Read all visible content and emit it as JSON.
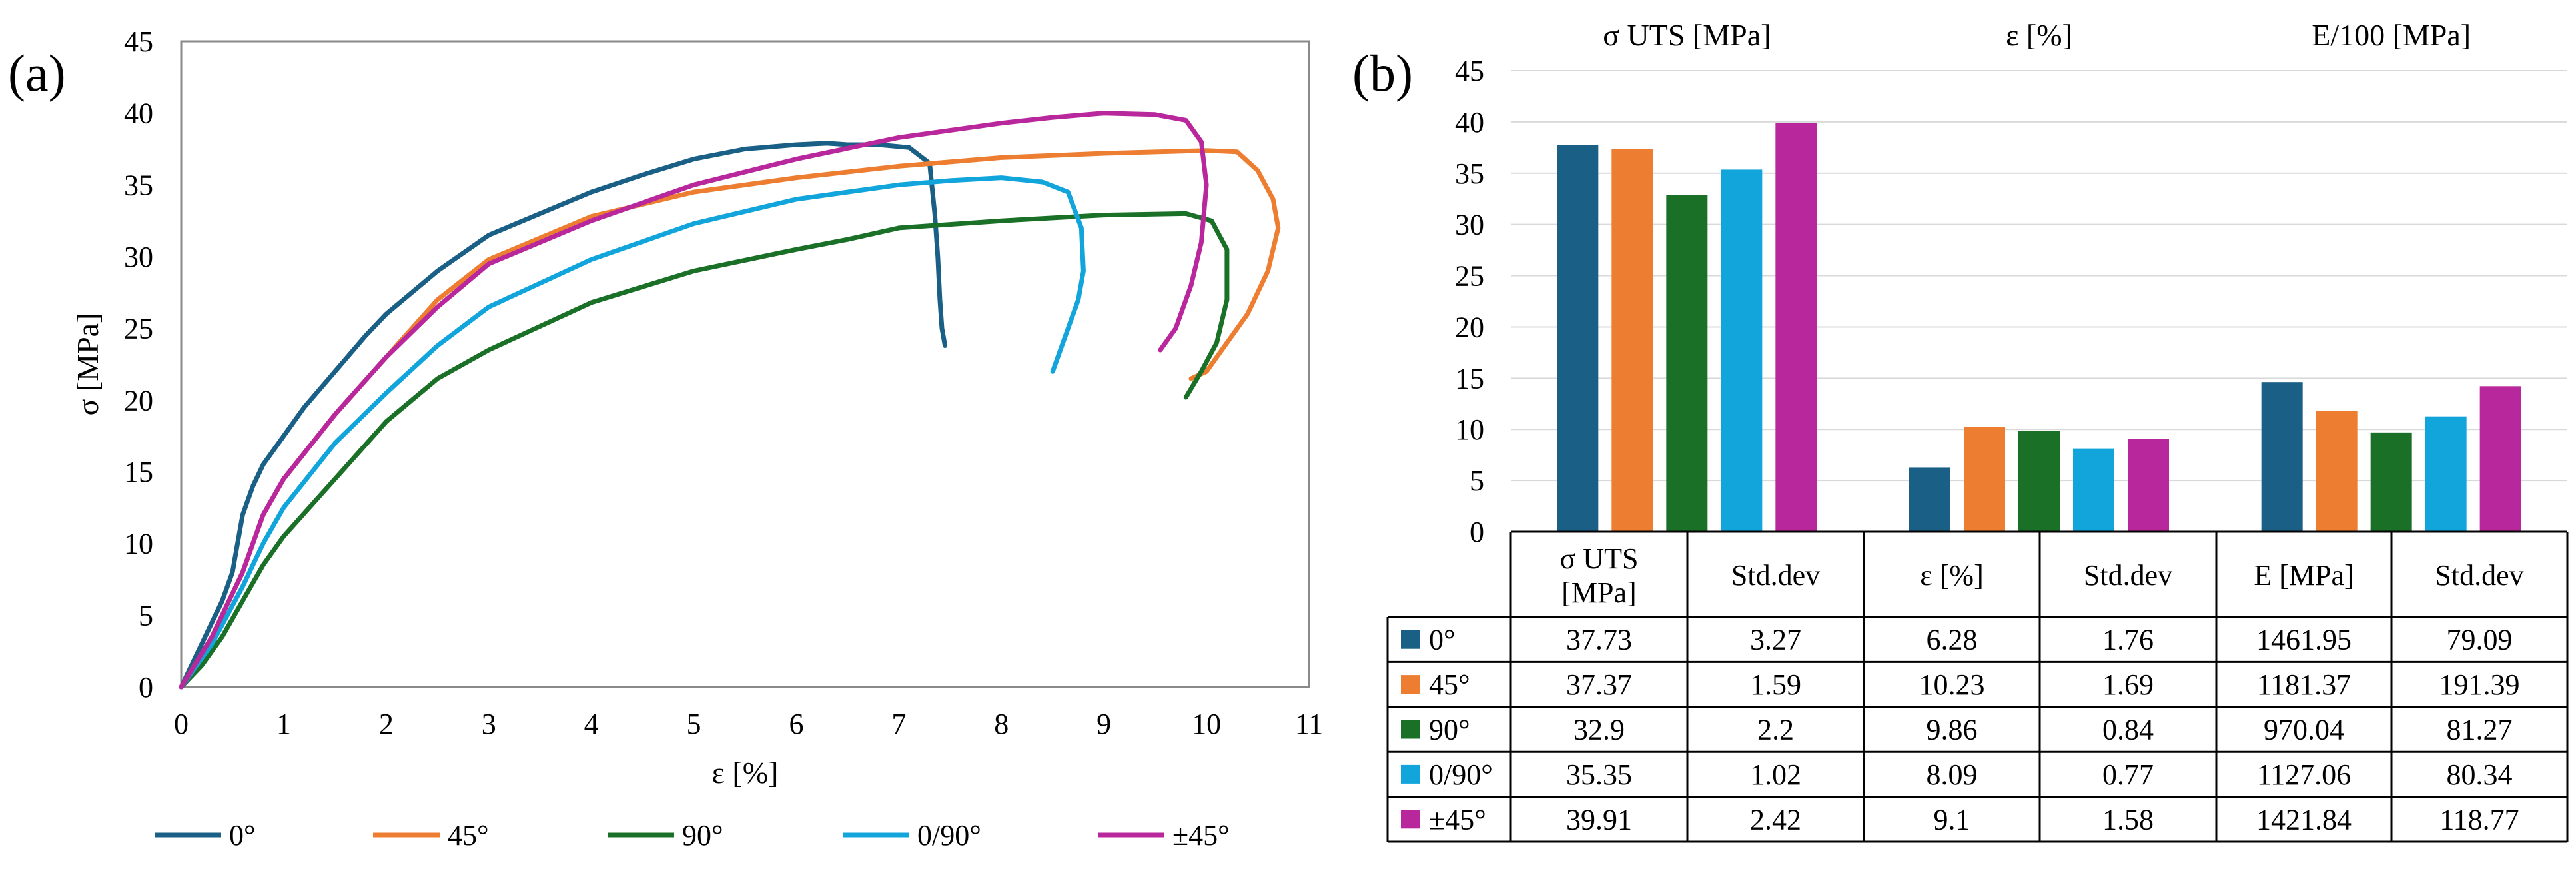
{
  "panel_a": {
    "label": "(a)",
    "chart_data": {
      "type": "line",
      "title": "",
      "xlabel": "ε [%]",
      "ylabel": "σ [MPa]",
      "xlim": [
        0,
        11
      ],
      "ylim": [
        0,
        45
      ],
      "xticks": [
        "0",
        "1",
        "2",
        "3",
        "4",
        "5",
        "6",
        "7",
        "8",
        "9",
        "10",
        "11"
      ],
      "yticks": [
        "0",
        "5",
        "10",
        "15",
        "20",
        "25",
        "30",
        "35",
        "40",
        "45"
      ],
      "grid": false,
      "legend": "bottom",
      "series": [
        {
          "name": "0°",
          "color": "#1a5f86",
          "x": [
            0,
            0.2,
            0.4,
            0.5,
            0.55,
            0.6,
            0.7,
            0.8,
            1,
            1.2,
            1.5,
            1.8,
            2,
            2.5,
            3,
            3.5,
            4,
            4.5,
            5,
            5.5,
            6,
            6.3,
            6.5,
            6.8,
            7.1,
            7.3,
            7.35,
            7.38,
            7.4,
            7.42,
            7.45
          ],
          "y": [
            0,
            3,
            6,
            8,
            10,
            12,
            14,
            15.5,
            17.5,
            19.5,
            22,
            24.5,
            26,
            29,
            31.5,
            33,
            34.5,
            35.7,
            36.8,
            37.5,
            37.8,
            37.9,
            37.8,
            37.8,
            37.6,
            36.5,
            33,
            30,
            27,
            25,
            23.8
          ]
        },
        {
          "name": "45°",
          "color": "#ed7d31",
          "x": [
            0,
            0.3,
            0.6,
            0.8,
            1,
            1.5,
            2,
            2.5,
            3,
            4,
            5,
            6,
            7,
            8,
            9,
            10,
            10.3,
            10.5,
            10.65,
            10.7,
            10.6,
            10.4,
            10.2,
            10,
            9.85
          ],
          "y": [
            0,
            3.5,
            8,
            12,
            14.5,
            19,
            23,
            27,
            29.8,
            32.8,
            34.5,
            35.5,
            36.3,
            36.9,
            37.2,
            37.4,
            37.3,
            36,
            34,
            32,
            29,
            26,
            24,
            22,
            21.5
          ]
        },
        {
          "name": "90°",
          "color": "#1b7028",
          "x": [
            0,
            0.2,
            0.4,
            0.6,
            0.8,
            1,
            1.5,
            2,
            2.5,
            3,
            4,
            5,
            6,
            6.5,
            7,
            8,
            9,
            9.8,
            10.05,
            10.2,
            10.2,
            10.1,
            9.95,
            9.8
          ],
          "y": [
            0,
            1.5,
            3.5,
            6,
            8.5,
            10.5,
            14.5,
            18.5,
            21.5,
            23.5,
            26.8,
            29,
            30.5,
            31.2,
            32,
            32.5,
            32.9,
            33,
            32.5,
            30.5,
            27,
            24,
            22,
            20.2
          ]
        },
        {
          "name": "0/90°",
          "color": "#12a5dc",
          "x": [
            0,
            0.3,
            0.6,
            0.8,
            1,
            1.5,
            2,
            2.5,
            3,
            4,
            5,
            6,
            7,
            7.5,
            8,
            8.4,
            8.65,
            8.78,
            8.8,
            8.75,
            8.65,
            8.55,
            8.5
          ],
          "y": [
            0,
            3,
            7,
            10,
            12.5,
            17,
            20.5,
            23.8,
            26.5,
            29.8,
            32.3,
            34,
            35,
            35.3,
            35.5,
            35.2,
            34.5,
            32,
            29,
            27,
            25,
            23,
            22
          ]
        },
        {
          "name": "±45°",
          "color": "#b8279b",
          "x": [
            0,
            0.3,
            0.6,
            0.8,
            1,
            1.5,
            2,
            2.5,
            3,
            4,
            5,
            6,
            7,
            8,
            8.5,
            9,
            9.5,
            9.8,
            9.95,
            10.0,
            9.95,
            9.85,
            9.7,
            9.55
          ],
          "y": [
            0,
            3.5,
            8,
            12,
            14.5,
            19,
            23,
            26.5,
            29.5,
            32.5,
            35,
            36.8,
            38.3,
            39.3,
            39.7,
            40,
            39.9,
            39.5,
            38,
            35,
            31,
            28,
            25,
            23.5
          ]
        }
      ]
    }
  },
  "panel_b": {
    "label": "(b)",
    "chart_data": {
      "type": "bar",
      "groups": [
        "σ UTS [MPa]",
        "ε [%]",
        "E/100 [MPa]"
      ],
      "ylim": [
        0,
        45
      ],
      "yticks": [
        "0",
        "5",
        "10",
        "15",
        "20",
        "25",
        "30",
        "35",
        "40",
        "45"
      ],
      "grid": true,
      "series": [
        {
          "name": "0°",
          "color": "#1a5f86",
          "values": [
            37.73,
            6.28,
            14.62
          ]
        },
        {
          "name": "45°",
          "color": "#ed7d31",
          "values": [
            37.37,
            10.23,
            11.81
          ]
        },
        {
          "name": "90°",
          "color": "#1b7028",
          "values": [
            32.9,
            9.86,
            9.7
          ]
        },
        {
          "name": "0/90°",
          "color": "#12a5dc",
          "values": [
            35.35,
            8.09,
            11.27
          ]
        },
        {
          "name": "±45°",
          "color": "#b8279b",
          "values": [
            39.91,
            9.1,
            14.22
          ]
        }
      ]
    },
    "table": {
      "headers": [
        [
          "σ UTS",
          "[MPa]"
        ],
        [
          "Std.dev"
        ],
        [
          "ε [%]"
        ],
        [
          "Std.dev"
        ],
        [
          "E [MPa]"
        ],
        [
          "Std.dev"
        ]
      ],
      "rows": [
        {
          "label": "0°",
          "color": "#1a5f86",
          "cells": [
            "37.73",
            "3.27",
            "6.28",
            "1.76",
            "1461.95",
            "79.09"
          ]
        },
        {
          "label": "45°",
          "color": "#ed7d31",
          "cells": [
            "37.37",
            "1.59",
            "10.23",
            "1.69",
            "1181.37",
            "191.39"
          ]
        },
        {
          "label": "90°",
          "color": "#1b7028",
          "cells": [
            "32.9",
            "2.2",
            "9.86",
            "0.84",
            "970.04",
            "81.27"
          ]
        },
        {
          "label": "0/90°",
          "color": "#12a5dc",
          "cells": [
            "35.35",
            "1.02",
            "8.09",
            "0.77",
            "1127.06",
            "80.34"
          ]
        },
        {
          "label": "±45°",
          "color": "#b8279b",
          "cells": [
            "39.91",
            "2.42",
            "9.1",
            "1.58",
            "1421.84",
            "118.77"
          ]
        }
      ]
    }
  }
}
